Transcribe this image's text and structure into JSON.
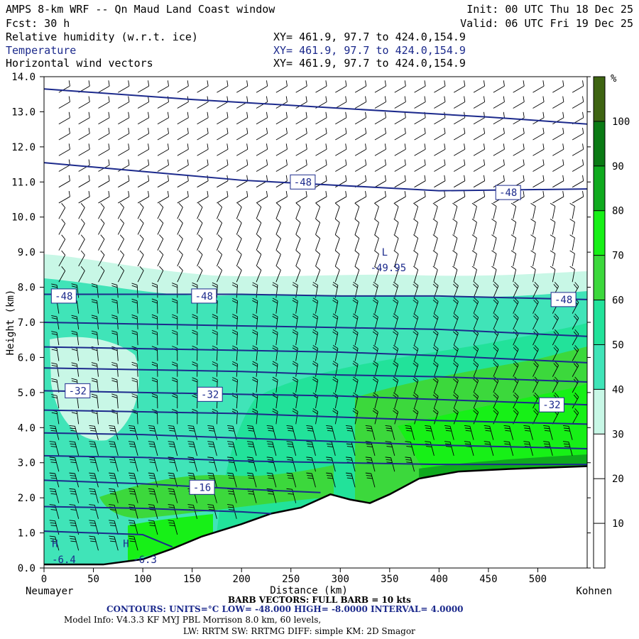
{
  "header": {
    "title": "AMPS 8-km WRF -- Qn Maud Land Coast window",
    "init": "Init: 00 UTC Thu 18 Dec 25",
    "fcst": "Fcst:   30 h",
    "valid": "Valid: 06 UTC Fri 19 Dec 25",
    "fields": [
      {
        "label": "Relative humidity (w.r.t. ice)",
        "xy": "XY= 461.9, 97.7 to 424.0,154.9",
        "color": "#000000"
      },
      {
        "label": "Temperature",
        "xy": "XY= 461.9, 97.7 to 424.0,154.9",
        "color": "#1c2a8c"
      },
      {
        "label": "Horizontal wind vectors",
        "xy": "XY= 461.9, 97.7 to 424.0,154.9",
        "color": "#000000"
      }
    ]
  },
  "chart_data": {
    "type": "heatmap",
    "xlabel": "Distance (km)",
    "ylabel": "Height (km)",
    "xlim": [
      0,
      550
    ],
    "ylim": [
      0,
      14
    ],
    "x_ticks": [
      "0",
      "50",
      "100",
      "150",
      "200",
      "250",
      "300",
      "350",
      "400",
      "450",
      "500"
    ],
    "y_ticks": [
      "0.0",
      "1.0",
      "2.0",
      "3.0",
      "4.0",
      "5.0",
      "6.0",
      "7.0",
      "8.0",
      "9.0",
      "10.0",
      "11.0",
      "12.0",
      "13.0",
      "14.0"
    ],
    "left_station": "Neumayer",
    "right_station": "Kohnen",
    "colorbar": {
      "unit": "%",
      "levels": [
        "10",
        "20",
        "30",
        "40",
        "50",
        "60",
        "70",
        "80",
        "90",
        "100"
      ],
      "colors": [
        "#ffffff",
        "#ffffff",
        "#ffffff",
        "#c8f7e6",
        "#40e4b8",
        "#22e29a",
        "#3cd83c",
        "#17f017",
        "#0faa1e",
        "#0a7a14",
        "#3e6412"
      ]
    },
    "terrain": [
      [
        0,
        0.1
      ],
      [
        60,
        0.1
      ],
      [
        100,
        0.25
      ],
      [
        130,
        0.55
      ],
      [
        160,
        0.9
      ],
      [
        200,
        1.25
      ],
      [
        230,
        1.55
      ],
      [
        260,
        1.72
      ],
      [
        290,
        2.1
      ],
      [
        310,
        1.95
      ],
      [
        330,
        1.85
      ],
      [
        350,
        2.1
      ],
      [
        380,
        2.55
      ],
      [
        420,
        2.75
      ],
      [
        470,
        2.82
      ],
      [
        550,
        2.9
      ]
    ],
    "temperature_contours": [
      {
        "value": -48,
        "points": [
          [
            0,
            13.65
          ],
          [
            150,
            13.35
          ],
          [
            300,
            13.1
          ],
          [
            450,
            12.85
          ],
          [
            550,
            12.65
          ]
        ]
      },
      {
        "value": -48,
        "points": [
          [
            0,
            11.55
          ],
          [
            100,
            11.3
          ],
          [
            200,
            11.05
          ],
          [
            300,
            10.9
          ],
          [
            400,
            10.75
          ],
          [
            550,
            10.8
          ]
        ]
      },
      {
        "value": -48,
        "points": [
          [
            0,
            7.8
          ],
          [
            100,
            7.8
          ],
          [
            200,
            7.8
          ],
          [
            300,
            7.75
          ],
          [
            400,
            7.75
          ],
          [
            550,
            7.65
          ]
        ]
      },
      {
        "value": -44,
        "points": [
          [
            0,
            7.0
          ],
          [
            100,
            6.95
          ],
          [
            200,
            6.9
          ],
          [
            300,
            6.85
          ],
          [
            400,
            6.8
          ],
          [
            550,
            6.6
          ]
        ]
      },
      {
        "value": -40,
        "points": [
          [
            0,
            6.3
          ],
          [
            100,
            6.25
          ],
          [
            200,
            6.2
          ],
          [
            300,
            6.15
          ],
          [
            400,
            6.05
          ],
          [
            550,
            5.85
          ]
        ]
      },
      {
        "value": -36,
        "points": [
          [
            0,
            5.7
          ],
          [
            100,
            5.65
          ],
          [
            200,
            5.6
          ],
          [
            300,
            5.5
          ],
          [
            400,
            5.45
          ],
          [
            550,
            5.3
          ]
        ]
      },
      {
        "value": -32,
        "points": [
          [
            0,
            5.05
          ],
          [
            100,
            5.0
          ],
          [
            200,
            4.95
          ],
          [
            300,
            4.9
          ],
          [
            400,
            4.8
          ],
          [
            550,
            4.65
          ]
        ]
      },
      {
        "value": -28,
        "points": [
          [
            0,
            4.5
          ],
          [
            100,
            4.45
          ],
          [
            200,
            4.4
          ],
          [
            300,
            4.3
          ],
          [
            400,
            4.2
          ],
          [
            550,
            4.1
          ]
        ]
      },
      {
        "value": -24,
        "points": [
          [
            0,
            3.85
          ],
          [
            100,
            3.8
          ],
          [
            200,
            3.7
          ],
          [
            300,
            3.6
          ],
          [
            400,
            3.5
          ],
          [
            550,
            3.4
          ]
        ]
      },
      {
        "value": -20,
        "points": [
          [
            0,
            3.2
          ],
          [
            100,
            3.15
          ],
          [
            200,
            3.05
          ],
          [
            300,
            3.0
          ],
          [
            400,
            2.95
          ],
          [
            550,
            2.95
          ]
        ]
      },
      {
        "value": -16,
        "points": [
          [
            0,
            2.5
          ],
          [
            100,
            2.4
          ],
          [
            200,
            2.25
          ],
          [
            280,
            2.15
          ]
        ]
      },
      {
        "value": -12,
        "points": [
          [
            0,
            1.75
          ],
          [
            100,
            1.7
          ],
          [
            200,
            1.6
          ],
          [
            230,
            1.55
          ]
        ]
      },
      {
        "value": -8,
        "points": [
          [
            0,
            1.05
          ],
          [
            100,
            0.95
          ],
          [
            130,
            0.6
          ]
        ]
      }
    ],
    "contour_labels": [
      {
        "text": "-48",
        "x": 262,
        "y": 11.0
      },
      {
        "text": "-48",
        "x": 470,
        "y": 10.7
      },
      {
        "text": "-48",
        "x": 20,
        "y": 7.75
      },
      {
        "text": "-48",
        "x": 162,
        "y": 7.75
      },
      {
        "text": "-48",
        "x": 526,
        "y": 7.65
      },
      {
        "text": "-32",
        "x": 34,
        "y": 5.05
      },
      {
        "text": "-32",
        "x": 168,
        "y": 4.95
      },
      {
        "text": "-32",
        "x": 514,
        "y": 4.65
      },
      {
        "text": "-16",
        "x": 160,
        "y": 2.3
      }
    ],
    "low_marker": {
      "text": "L",
      "value": "-49.95",
      "x": 345,
      "y": 8.9
    },
    "high_markers": [
      {
        "text": "H",
        "x": 8,
        "y": 0.6
      },
      {
        "text": "H",
        "x": 80,
        "y": 0.6
      }
    ],
    "bottom_labels": [
      {
        "text": "-6.4",
        "x": 8,
        "y": 0.1
      },
      {
        "text": "-6.3",
        "x": 90,
        "y": 0.1
      }
    ]
  },
  "footer": {
    "barb_note": "BARB VECTORS:  FULL BARB = 10 kts",
    "contours_note": "CONTOURS:  UNITS=°C  LOW= -48.000        HIGH= -8.0000        INTERVAL=   4.0000",
    "model_line1": "Model Info: V4.3.3   KF      MYJ PBL  Morrison            8.0 km,  60 levels,",
    "model_line2": "LW: RRTM SW: RRTMG   DIFF: simple KM: 2D Smagor"
  }
}
